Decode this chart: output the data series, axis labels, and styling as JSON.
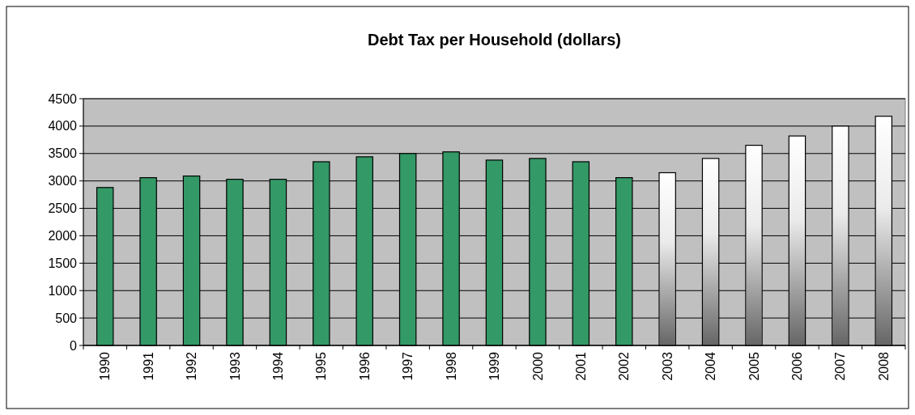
{
  "chart_data": {
    "type": "bar",
    "title": "Debt Tax per Household (dollars)",
    "categories": [
      "1990",
      "1991",
      "1992",
      "1993",
      "1994",
      "1995",
      "1996",
      "1997",
      "1998",
      "1999",
      "2000",
      "2001",
      "2002",
      "2003",
      "2004",
      "2005",
      "2006",
      "2007",
      "2008"
    ],
    "values": [
      2880,
      3060,
      3090,
      3030,
      3030,
      3350,
      3440,
      3500,
      3530,
      3380,
      3410,
      3350,
      3060,
      3150,
      3410,
      3650,
      3820,
      4000,
      4180
    ],
    "colors": [
      "#339966",
      "#339966",
      "#339966",
      "#339966",
      "#339966",
      "#339966",
      "#339966",
      "#339966",
      "#339966",
      "#339966",
      "#339966",
      "#339966",
      "#339966",
      "#ffffff",
      "#ffffff",
      "#ffffff",
      "#ffffff",
      "#ffffff",
      "#ffffff"
    ],
    "ylim": [
      0,
      4500
    ],
    "yticks": [
      0,
      500,
      1000,
      1500,
      2000,
      2500,
      3000,
      3500,
      4000,
      4500
    ],
    "grid": "y"
  }
}
